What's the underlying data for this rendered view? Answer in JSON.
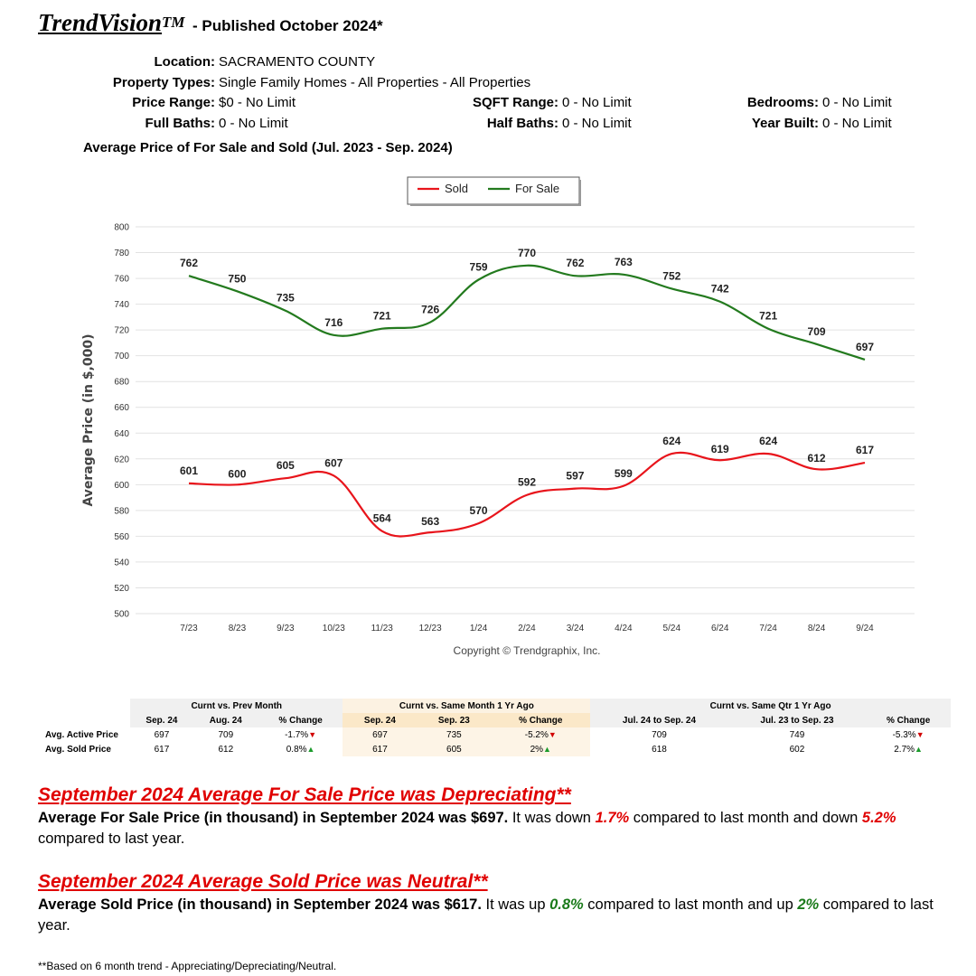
{
  "header": {
    "brand": "TrendVision",
    "tm": "TM",
    "published": "- Published October 2024*"
  },
  "criteria": {
    "location_label": "Location:",
    "location": "SACRAMENTO COUNTY",
    "property_types_label": "Property Types:",
    "property_types": "Single Family Homes - All Properties - All Properties",
    "price_range_label": "Price Range:",
    "price_range": "$0 - No Limit",
    "sqft_range_label": "SQFT Range:",
    "sqft_range": "0 - No Limit",
    "bedrooms_label": "Bedrooms:",
    "bedrooms": "0 - No Limit",
    "full_baths_label": "Full Baths:",
    "full_baths": "0 - No Limit",
    "half_baths_label": "Half Baths:",
    "half_baths": "0 - No Limit",
    "year_built_label": "Year Built:",
    "year_built": "0 - No Limit"
  },
  "chart_title": "Average Price of For Sale and Sold (Jul. 2023 - Sep. 2024)",
  "chart_data": {
    "type": "line",
    "categories": [
      "7/23",
      "8/23",
      "9/23",
      "10/23",
      "11/23",
      "12/23",
      "1/24",
      "2/24",
      "3/24",
      "4/24",
      "5/24",
      "6/24",
      "7/24",
      "8/24",
      "9/24"
    ],
    "series": [
      {
        "name": "Sold",
        "color": "#e8141b",
        "values": [
          601,
          600,
          605,
          607,
          564,
          563,
          570,
          592,
          597,
          599,
          624,
          619,
          624,
          612,
          617
        ]
      },
      {
        "name": "For Sale",
        "color": "#237a1e",
        "values": [
          762,
          750,
          735,
          716,
          721,
          726,
          759,
          770,
          762,
          763,
          752,
          742,
          721,
          709,
          697
        ]
      }
    ],
    "ylabel": "Average Price (in $,000)",
    "ylim": [
      500,
      800
    ],
    "yticks": [
      500,
      520,
      540,
      560,
      580,
      600,
      620,
      640,
      660,
      680,
      700,
      720,
      740,
      760,
      780,
      800
    ],
    "grid": true,
    "legend": "top-center",
    "copyright": "Copyright © Trendgraphix, Inc."
  },
  "table": {
    "groups": [
      "Curnt vs. Prev Month",
      "Curnt vs. Same Month 1 Yr Ago",
      "Curnt vs. Same Qtr 1 Yr Ago"
    ],
    "subheaders": [
      "Sep. 24",
      "Aug. 24",
      "% Change",
      "Sep. 24",
      "Sep. 23",
      "% Change",
      "Jul. 24 to Sep. 24",
      "Jul. 23 to Sep. 23",
      "% Change"
    ],
    "rows": [
      {
        "label": "Avg. Active Price",
        "cells": [
          "697",
          "709",
          "-1.7%",
          "697",
          "735",
          "-5.2%",
          "709",
          "749",
          "-5.3%"
        ],
        "dirs": [
          "down",
          "down",
          "down"
        ]
      },
      {
        "label": "Avg. Sold Price",
        "cells": [
          "617",
          "612",
          "0.8%",
          "617",
          "605",
          "2%",
          "618",
          "602",
          "2.7%"
        ],
        "dirs": [
          "up",
          "up",
          "up"
        ]
      }
    ]
  },
  "summary1": {
    "heading": "September 2024 Average For Sale Price was Depreciating**",
    "lead": "Average For Sale Price (in thousand) in September 2024 was $697.",
    "t1": " It was down ",
    "v1": "1.7%",
    "t2": " compared to last month and down ",
    "v2": "5.2%",
    "t3": " compared to last year."
  },
  "summary2": {
    "heading": "September 2024 Average Sold Price was Neutral**",
    "lead": "Average Sold Price (in thousand) in September 2024 was $617.",
    "t1": " It was up ",
    "v1": "0.8%",
    "t2": " compared to last month and up ",
    "v2": "2%",
    "t3": " compared to last year."
  },
  "footnote": "**Based on 6 month trend - Appreciating/Depreciating/Neutral."
}
